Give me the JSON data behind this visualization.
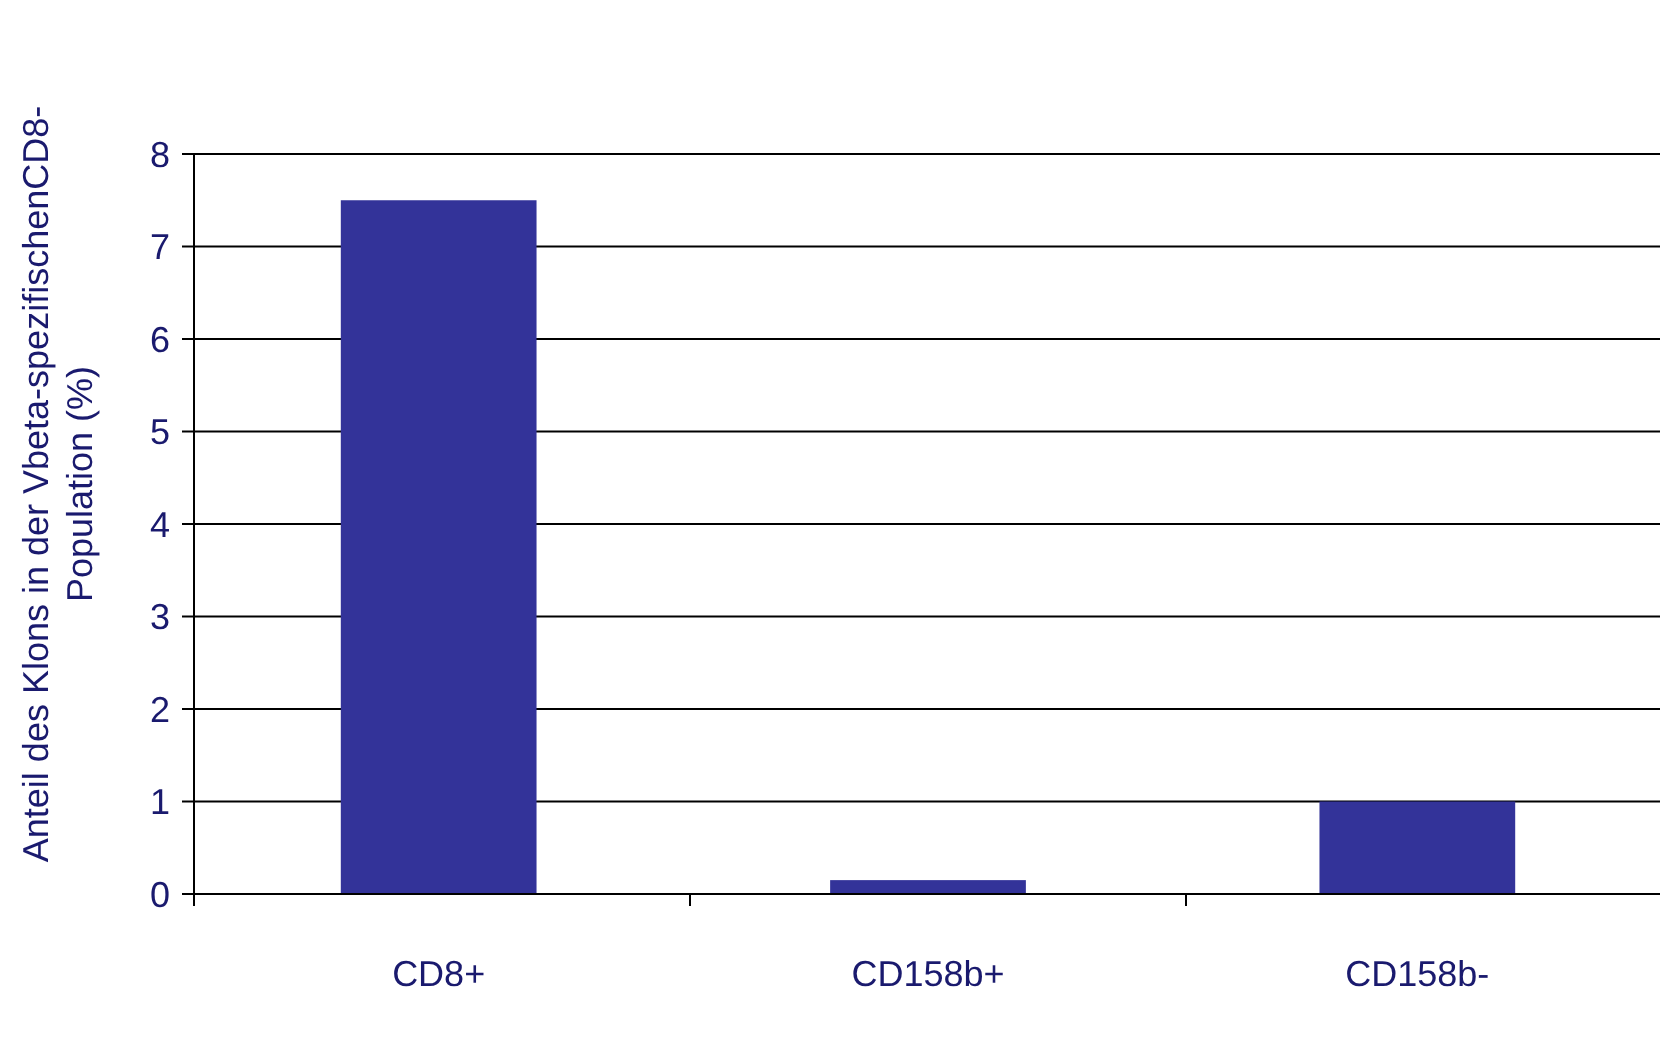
{
  "chart_data": {
    "type": "bar",
    "ylabel": "Anteil des Klons in der Vbeta-spezifischenCD8-\nPopulation (%)",
    "categories": [
      "CD8+",
      "CD158b+",
      "CD158b-"
    ],
    "values": [
      7.5,
      0.15,
      1.0
    ],
    "color": "#333399",
    "ylim": [
      0,
      8
    ],
    "yticks": [
      0,
      1,
      2,
      3,
      4,
      5,
      6,
      7,
      8
    ],
    "grid": "y"
  }
}
